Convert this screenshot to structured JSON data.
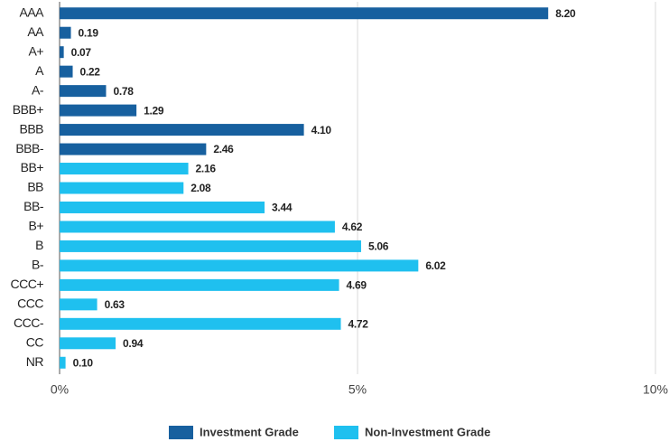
{
  "chart_data": {
    "type": "hbar",
    "categories": [
      "AAA",
      "AA",
      "A+",
      "A",
      "A-",
      "BBB+",
      "BBB",
      "BBB-",
      "BB+",
      "BB",
      "BB-",
      "B+",
      "B",
      "B-",
      "CCC+",
      "CCC",
      "CCC-",
      "CC",
      "NR"
    ],
    "series": [
      {
        "name": "Investment Grade",
        "color": "#17609f",
        "values": [
          8.2,
          0.19,
          0.07,
          0.22,
          0.78,
          1.29,
          4.1,
          2.46,
          null,
          null,
          null,
          null,
          null,
          null,
          null,
          null,
          null,
          null,
          null
        ],
        "value_labels": [
          "8.20",
          "0.19",
          "0.07",
          "0.22",
          "0.78",
          "1.29",
          "4.10",
          "2.46",
          null,
          null,
          null,
          null,
          null,
          null,
          null,
          null,
          null,
          null,
          null
        ]
      },
      {
        "name": "Non-Investment Grade",
        "color": "#1fc0ef",
        "values": [
          null,
          null,
          null,
          null,
          null,
          null,
          null,
          null,
          2.16,
          2.08,
          3.44,
          4.62,
          5.06,
          6.02,
          4.69,
          0.63,
          4.72,
          0.94,
          0.1
        ],
        "value_labels": [
          null,
          null,
          null,
          null,
          null,
          null,
          null,
          null,
          "2.16",
          "2.08",
          "3.44",
          "4.62",
          "5.06",
          "6.02",
          "4.69",
          "0.63",
          "4.72",
          "0.94",
          "0.10"
        ]
      }
    ],
    "xlim": [
      0,
      10
    ],
    "xticks": [
      {
        "value": 0,
        "label": "0%"
      },
      {
        "value": 5,
        "label": "5%"
      },
      {
        "value": 10,
        "label": "10%"
      }
    ],
    "grid": true,
    "legend": "bottom"
  }
}
